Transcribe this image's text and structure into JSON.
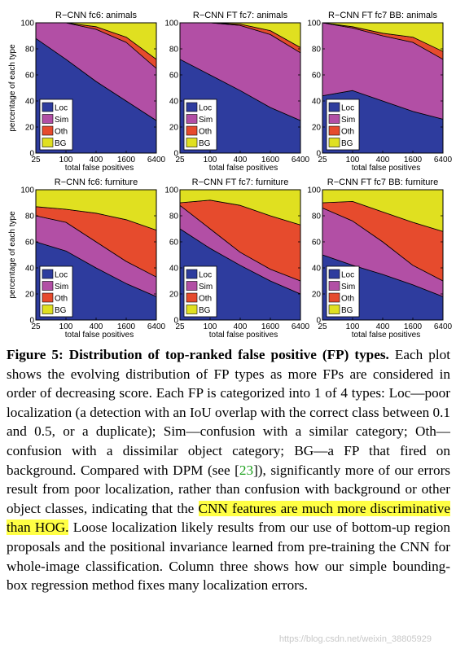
{
  "figure": {
    "ylabel": "percentage of each type",
    "xlabel": "total false positives",
    "xticks": [
      "25",
      "100",
      "400",
      "1600",
      "6400"
    ],
    "yticks": [
      "0",
      "20",
      "40",
      "60",
      "80",
      "100"
    ],
    "legend": [
      {
        "label": "Loc",
        "color": "#2e3c9e"
      },
      {
        "label": "Sim",
        "color": "#b24fa5"
      },
      {
        "label": "Oth",
        "color": "#e64b2d"
      },
      {
        "label": "BG",
        "color": "#e0e020"
      }
    ]
  },
  "chart_data": [
    {
      "type": "area",
      "title": "R−CNN fc6: animals",
      "xlabel": "total false positives",
      "ylabel": "percentage of each type",
      "x": [
        25,
        100,
        400,
        1600,
        6400
      ],
      "ylim": [
        0,
        100
      ],
      "series": [
        {
          "name": "Loc",
          "values": [
            88,
            72,
            55,
            40,
            25
          ]
        },
        {
          "name": "Sim",
          "values": [
            12,
            28,
            40,
            45,
            40
          ]
        },
        {
          "name": "Oth",
          "values": [
            0,
            0,
            2,
            4,
            7
          ]
        },
        {
          "name": "BG",
          "values": [
            0,
            0,
            3,
            11,
            28
          ]
        }
      ]
    },
    {
      "type": "area",
      "title": "R−CNN FT fc7: animals",
      "xlabel": "total false positives",
      "ylabel": "",
      "x": [
        25,
        100,
        400,
        1600,
        6400
      ],
      "ylim": [
        0,
        100
      ],
      "series": [
        {
          "name": "Loc",
          "values": [
            72,
            60,
            48,
            35,
            25
          ]
        },
        {
          "name": "Sim",
          "values": [
            28,
            40,
            50,
            56,
            52
          ]
        },
        {
          "name": "Oth",
          "values": [
            0,
            0,
            1,
            3,
            4
          ]
        },
        {
          "name": "BG",
          "values": [
            0,
            0,
            1,
            6,
            19
          ]
        }
      ]
    },
    {
      "type": "area",
      "title": "R−CNN FT fc7 BB: animals",
      "xlabel": "total false positives",
      "ylabel": "",
      "x": [
        25,
        100,
        400,
        1600,
        6400
      ],
      "ylim": [
        0,
        100
      ],
      "series": [
        {
          "name": "Loc",
          "values": [
            44,
            48,
            40,
            32,
            26
          ]
        },
        {
          "name": "Sim",
          "values": [
            56,
            48,
            50,
            53,
            46
          ]
        },
        {
          "name": "Oth",
          "values": [
            0,
            1,
            2,
            4,
            6
          ]
        },
        {
          "name": "BG",
          "values": [
            0,
            3,
            8,
            11,
            22
          ]
        }
      ]
    },
    {
      "type": "area",
      "title": "R−CNN fc6: furniture",
      "xlabel": "total false positives",
      "ylabel": "percentage of each type",
      "x": [
        25,
        100,
        400,
        1600,
        6400
      ],
      "ylim": [
        0,
        100
      ],
      "series": [
        {
          "name": "Loc",
          "values": [
            60,
            53,
            40,
            28,
            18
          ]
        },
        {
          "name": "Sim",
          "values": [
            20,
            22,
            20,
            17,
            15
          ]
        },
        {
          "name": "Oth",
          "values": [
            7,
            10,
            22,
            32,
            36
          ]
        },
        {
          "name": "BG",
          "values": [
            13,
            15,
            18,
            23,
            31
          ]
        }
      ]
    },
    {
      "type": "area",
      "title": "R−CNN FT fc7: furniture",
      "xlabel": "total false positives",
      "ylabel": "",
      "x": [
        25,
        100,
        400,
        1600,
        6400
      ],
      "ylim": [
        0,
        100
      ],
      "series": [
        {
          "name": "Loc",
          "values": [
            70,
            55,
            42,
            30,
            20
          ]
        },
        {
          "name": "Sim",
          "values": [
            18,
            15,
            10,
            9,
            10
          ]
        },
        {
          "name": "Oth",
          "values": [
            2,
            22,
            36,
            41,
            43
          ]
        },
        {
          "name": "BG",
          "values": [
            10,
            8,
            12,
            20,
            27
          ]
        }
      ]
    },
    {
      "type": "area",
      "title": "R−CNN FT fc7 BB: furniture",
      "xlabel": "total false positives",
      "ylabel": "",
      "x": [
        25,
        100,
        400,
        1600,
        6400
      ],
      "ylim": [
        0,
        100
      ],
      "series": [
        {
          "name": "Loc",
          "values": [
            50,
            42,
            35,
            27,
            18
          ]
        },
        {
          "name": "Sim",
          "values": [
            36,
            34,
            25,
            15,
            12
          ]
        },
        {
          "name": "Oth",
          "values": [
            4,
            15,
            23,
            33,
            38
          ]
        },
        {
          "name": "BG",
          "values": [
            10,
            9,
            17,
            25,
            32
          ]
        }
      ]
    }
  ],
  "caption": {
    "title": "Figure 5: Distribution of top-ranked false positive (FP) types.",
    "text1": " Each plot shows the evolving distribution of FP types as more FPs are considered in order of decreasing score. Each FP is categorized into 1 of 4 types: Loc—poor localization (a detection with an IoU overlap with the correct class between 0.1 and 0.5, or a duplicate); Sim—confusion with a similar category; Oth—confusion with a dissimilar object category; BG—a FP that fired on background. Compared with DPM (see [",
    "cite": "23",
    "text2": "]), significantly more of our errors result from poor localization, rather than confusion with background or other object classes, indicating that the ",
    "highlight": "CNN features are much more discriminative than HOG.",
    "text3": " Loose localization likely results from our use of bottom-up region proposals and the positional invariance learned from pre-training the CNN for whole-image classification. Column three shows how our simple bounding-box regression method fixes many localization errors."
  },
  "watermark": "https://blog.csdn.net/weixin_38805929"
}
